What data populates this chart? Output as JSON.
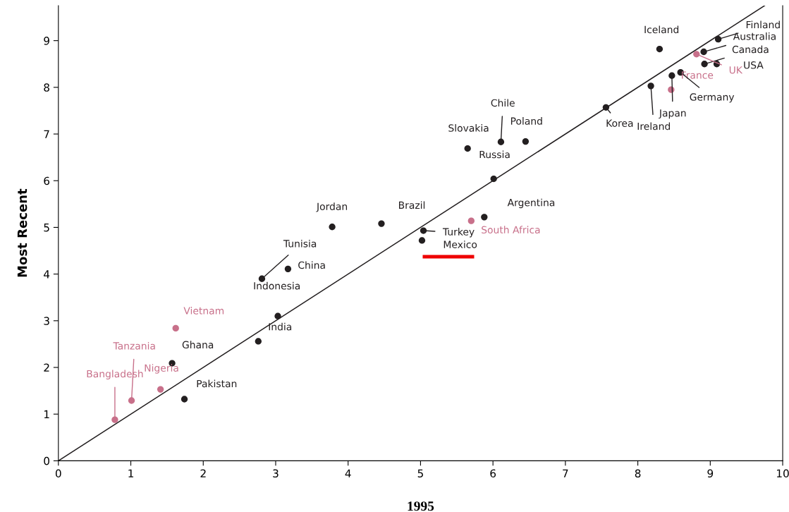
{
  "chart_data": {
    "type": "scatter",
    "xlabel": "1995",
    "ylabel": "Most Recent",
    "xlim": [
      0,
      10
    ],
    "ylim": [
      0,
      9.75
    ],
    "xticks": [
      0,
      1,
      2,
      3,
      4,
      5,
      6,
      7,
      8,
      9,
      10
    ],
    "yticks": [
      0,
      1,
      2,
      3,
      4,
      5,
      6,
      7,
      8,
      9
    ],
    "grid": false,
    "marker": "circle",
    "series": [
      {
        "color": "#231f20",
        "x": [
          1.57,
          1.74,
          2.76,
          3.03,
          2.81,
          3.17,
          3.78,
          4.46,
          5.04,
          5.02,
          5.88,
          6.01,
          5.65,
          6.11,
          6.45,
          7.56,
          8.18,
          8.47,
          8.59,
          8.3,
          9.11,
          8.91,
          8.92,
          9.09
        ],
        "values": [
          2.09,
          1.32,
          2.56,
          3.1,
          3.9,
          4.11,
          5.01,
          5.08,
          4.93,
          4.72,
          5.22,
          6.04,
          6.69,
          6.83,
          6.84,
          7.57,
          8.03,
          8.25,
          8.32,
          8.82,
          9.03,
          8.76,
          8.5,
          8.5
        ]
      },
      {
        "color": "#c8708a",
        "x": [
          0.78,
          1.01,
          1.41,
          1.62,
          5.7,
          8.46,
          8.81
        ],
        "values": [
          0.88,
          1.29,
          1.53,
          2.84,
          5.14,
          7.95,
          8.71
        ]
      },
      {
        "type": "line",
        "color": "#231f20",
        "line_style": "solid",
        "marker": "none",
        "x": [
          0,
          9.75
        ],
        "values": [
          0,
          9.75
        ]
      }
    ],
    "annotations": [
      {
        "text": "Bangladesh",
        "x": 0.78,
        "y": 0.88
      },
      {
        "text": "Tanzania",
        "x": 1.01,
        "y": 1.29
      },
      {
        "text": "Nigeria",
        "x": 1.41,
        "y": 1.53
      },
      {
        "text": "Vietnam",
        "x": 1.62,
        "y": 2.84
      },
      {
        "text": "Ghana",
        "x": 1.57,
        "y": 2.09
      },
      {
        "text": "Pakistan",
        "x": 1.74,
        "y": 1.32
      },
      {
        "text": "India",
        "x": 2.76,
        "y": 2.56
      },
      {
        "text": "Indonesia",
        "x": 3.03,
        "y": 3.1
      },
      {
        "text": "Tunisia",
        "x": 2.81,
        "y": 3.9
      },
      {
        "text": "China",
        "x": 3.17,
        "y": 4.11
      },
      {
        "text": "Jordan",
        "x": 3.78,
        "y": 5.01
      },
      {
        "text": "Brazil",
        "x": 4.46,
        "y": 5.08
      },
      {
        "text": "Turkey",
        "x": 5.04,
        "y": 4.93
      },
      {
        "text": "Mexico",
        "x": 5.02,
        "y": 4.72
      },
      {
        "text": "South Africa",
        "x": 5.7,
        "y": 5.14
      },
      {
        "text": "Argentina",
        "x": 5.88,
        "y": 5.22
      },
      {
        "text": "Russia",
        "x": 6.01,
        "y": 6.04
      },
      {
        "text": "Slovakia",
        "x": 5.65,
        "y": 6.69
      },
      {
        "text": "Chile",
        "x": 6.11,
        "y": 6.83
      },
      {
        "text": "Poland",
        "x": 6.45,
        "y": 6.84
      },
      {
        "text": "Korea",
        "x": 7.56,
        "y": 7.57
      },
      {
        "text": "Ireland",
        "x": 8.18,
        "y": 8.03
      },
      {
        "text": "Japan",
        "x": 8.47,
        "y": 8.25
      },
      {
        "text": "France",
        "x": 8.46,
        "y": 7.95
      },
      {
        "text": "Germany",
        "x": 8.59,
        "y": 8.32
      },
      {
        "text": "Iceland",
        "x": 8.3,
        "y": 8.82
      },
      {
        "text": "Finland",
        "x": 9.11,
        "y": 9.03
      },
      {
        "text": "Australia",
        "x": 8.91,
        "y": 8.76
      },
      {
        "text": "Canada",
        "x": 8.92,
        "y": 8.5
      },
      {
        "text": "UK",
        "x": 8.81,
        "y": 8.71
      },
      {
        "text": "USA",
        "x": 9.09,
        "y": 8.5
      }
    ]
  }
}
